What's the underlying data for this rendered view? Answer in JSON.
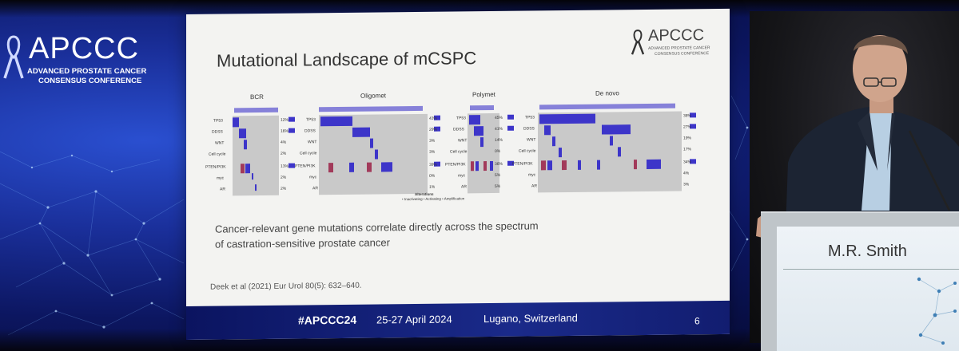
{
  "banner": {
    "logo_name": "APCCC",
    "logo_line1": "ADVANCED PROSTATE CANCER",
    "logo_line2": "CONSENSUS CONFERENCE"
  },
  "slide": {
    "title": "Mutational Landscape of mCSPC",
    "logo_name": "APCCC",
    "logo_line1": "ADVANCED PROSTATE CANCER",
    "logo_line2": "CONSENSUS CONFERENCE",
    "panels": [
      {
        "label": "BCR",
        "percents": [
          "12%",
          "16%",
          "4%",
          "2%",
          "13%",
          "2%",
          "2%"
        ]
      },
      {
        "label": "Oligomet",
        "percents": [
          "43%",
          "29%",
          "3%",
          "3%",
          "39%",
          "0%",
          "1%"
        ]
      },
      {
        "label": "Polymet",
        "percents": [
          "45%",
          "41%",
          "14%",
          "0%",
          "36%",
          "5%",
          "5%"
        ]
      },
      {
        "label": "De novo",
        "percents": [
          "38%",
          "27%",
          "19%",
          "17%",
          "34%",
          "4%",
          "3%"
        ]
      }
    ],
    "genes": [
      "TP53",
      "DDSS",
      "WNT",
      "Cell cycle",
      "PTEN/PI3K",
      "myc",
      "AR"
    ],
    "legend_title": "Alterations",
    "legend_text": "• Inactivating • Activating • Amplification",
    "caption_line1": "Cancer-relevant gene mutations correlate directly across the spectrum",
    "caption_line2": "of castration-sensitive prostate cancer",
    "citation": "Deek et al (2021) Eur Urol 80(5): 632–640.",
    "footer": {
      "hashtag": "#APCCC24",
      "dates": "25-27 April 2024",
      "place": "Lugano, Switzerland",
      "page": "6"
    }
  },
  "podium": {
    "name": "M.R. Smith"
  },
  "colors": {
    "mutation": "#3d35c9",
    "amplification": "#a23a5a",
    "matrix_bg": "#c9c9c9",
    "footer": "#1a2a8a"
  }
}
